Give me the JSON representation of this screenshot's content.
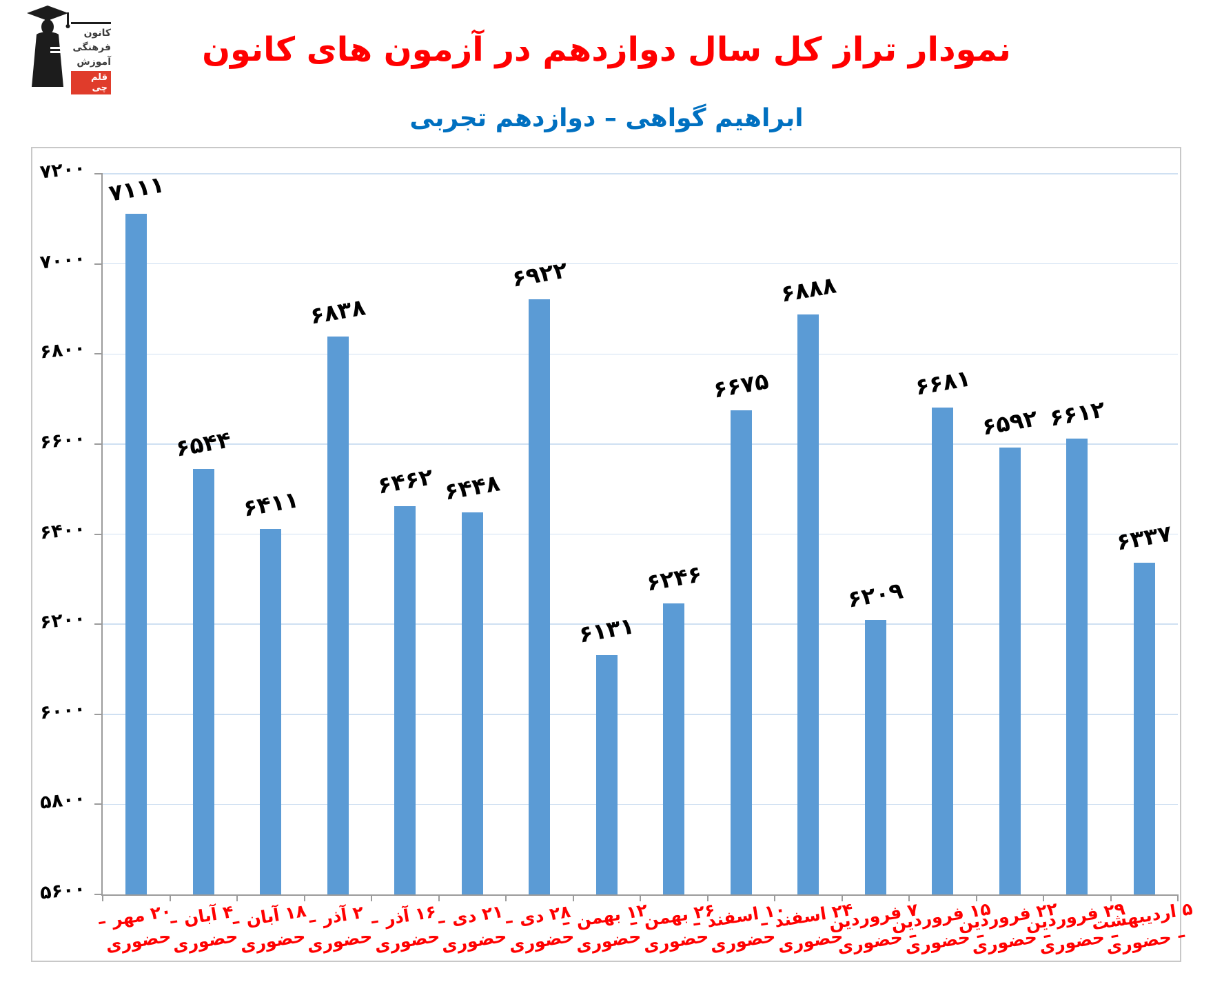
{
  "header": {
    "title": "نمودار تراز کل سال دوازدهم در آزمون های کانون",
    "subtitle": "ابراهیم گواهی – دوازدهم تجربی"
  },
  "logo": {
    "line1": "کانون",
    "line2": "فرهنگی",
    "line3": "آموزش",
    "badge": "قلم چی"
  },
  "colors": {
    "title_red": "#FF0000",
    "subtitle_blue": "#0070C0",
    "bar_blue": "#5B9BD5",
    "grid_blue": "#CFE0F2",
    "axis_gray": "#9B9B9B",
    "frame_gray": "#C8C8C8",
    "xlabel_red": "#FF0000",
    "value_black": "#000000",
    "badge_red": "#E03C2B",
    "logo_black": "#1C1C1C"
  },
  "chart_data": {
    "type": "bar",
    "title": "نمودار تراز کل سال دوازدهم در آزمون های کانون",
    "subtitle": "ابراهیم گواهی – دوازدهم تجربی",
    "ylim": [
      5600,
      7200
    ],
    "grid": true,
    "legend": "none",
    "bar_color": "#5B9BD5",
    "yticks": [
      {
        "value": 7200,
        "label": "۷۲۰۰"
      },
      {
        "value": 7000,
        "label": "۷۰۰۰"
      },
      {
        "value": 6800,
        "label": "۶۸۰۰"
      },
      {
        "value": 6600,
        "label": "۶۶۰۰"
      },
      {
        "value": 6400,
        "label": "۶۴۰۰"
      },
      {
        "value": 6200,
        "label": "۶۲۰۰"
      },
      {
        "value": 6000,
        "label": "۶۰۰۰"
      },
      {
        "value": 5800,
        "label": "۵۸۰۰"
      },
      {
        "value": 5600,
        "label": "۵۶۰۰"
      }
    ],
    "categories": [
      {
        "line1": "۲۰ مهر –",
        "line2": "حضوری"
      },
      {
        "line1": "۴ آبان –",
        "line2": "حضوری"
      },
      {
        "line1": "۱۸ آبان –",
        "line2": "حضوری"
      },
      {
        "line1": "۲ آذر –",
        "line2": "حضوری"
      },
      {
        "line1": "۱۶ آذر –",
        "line2": "حضوری"
      },
      {
        "line1": "۲۱ دی –",
        "line2": "حضوری"
      },
      {
        "line1": "۲۸ دی –",
        "line2": "حضوری"
      },
      {
        "line1": "۱۲ بهمن –",
        "line2": "حضوری"
      },
      {
        "line1": "۲۶ بهمن –",
        "line2": "حضوری"
      },
      {
        "line1": "۱۰ اسفند –",
        "line2": "حضوری"
      },
      {
        "line1": "۲۴ اسفند –",
        "line2": "حضوری"
      },
      {
        "line1": "۷ فروردین",
        "line2": "– حضوری"
      },
      {
        "line1": "۱۵ فروردین",
        "line2": "– حضوری"
      },
      {
        "line1": "۲۲ فروردین",
        "line2": "– حضوری"
      },
      {
        "line1": "۲۹ فروردین",
        "line2": "– حضوری"
      },
      {
        "line1": "۵ اردیبهشت",
        "line2": "– حضوری"
      }
    ],
    "values": [
      7111,
      6544,
      6411,
      6838,
      6462,
      6448,
      6922,
      6131,
      6246,
      6675,
      6888,
      6209,
      6681,
      6592,
      6612,
      6337
    ],
    "value_labels": [
      "۷۱۱۱",
      "۶۵۴۴",
      "۶۴۱۱",
      "۶۸۳۸",
      "۶۴۶۲",
      "۶۴۴۸",
      "۶۹۲۲",
      "۶۱۳۱",
      "۶۲۴۶",
      "۶۶۷۵",
      "۶۸۸۸",
      "۶۲۰۹",
      "۶۶۸۱",
      "۶۵۹۲",
      "۶۶۱۲",
      "۶۳۳۷"
    ]
  }
}
